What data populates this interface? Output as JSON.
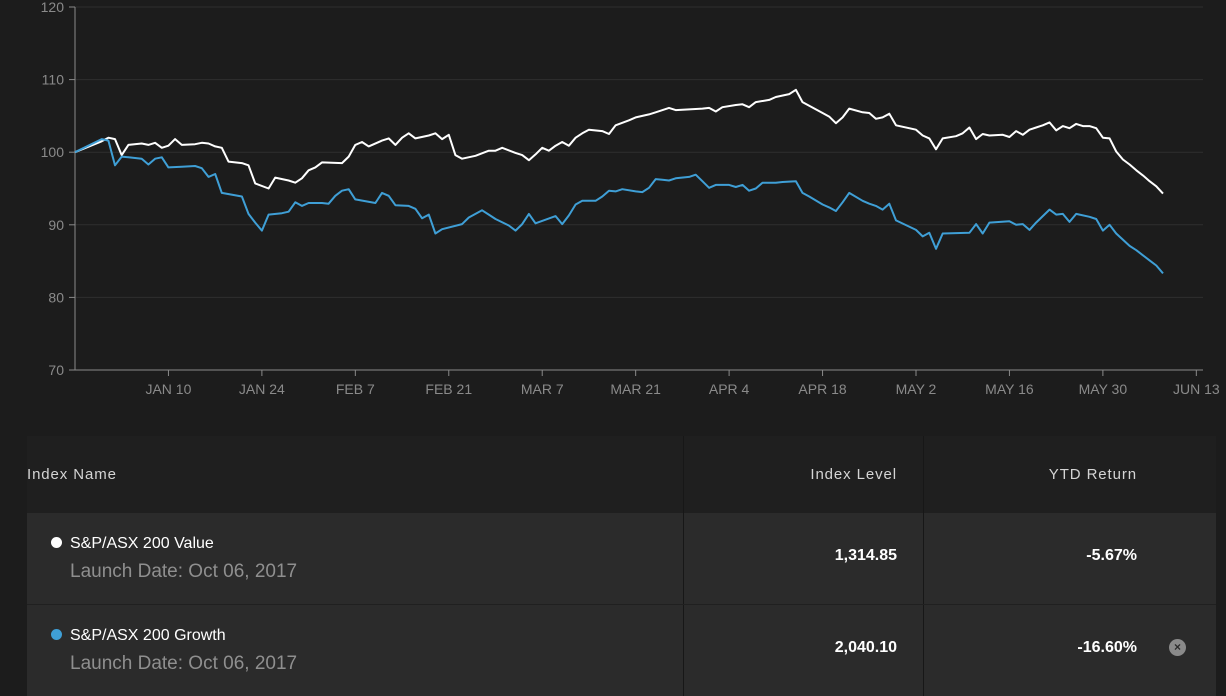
{
  "chart_data": {
    "type": "line",
    "ylim": [
      70,
      120
    ],
    "y_ticks": [
      70,
      80,
      90,
      100,
      110,
      120
    ],
    "x_tick_labels": [
      "JAN 10",
      "JAN 24",
      "FEB 7",
      "FEB 21",
      "MAR 7",
      "MAR 21",
      "APR 4",
      "APR 18",
      "MAY 2",
      "MAY 16",
      "MAY 30",
      "JUN 13"
    ],
    "x_tick_days": [
      9,
      23,
      37,
      51,
      65,
      79,
      93,
      107,
      121,
      135,
      149,
      163
    ],
    "x_range_days": [
      -5,
      164
    ],
    "grid": true,
    "series": [
      {
        "name": "S&P/ASX 200 Value",
        "color": "#ffffff",
        "points": [
          [
            -5,
            100.0
          ],
          [
            -1,
            101.5
          ],
          [
            0,
            102.0
          ],
          [
            1,
            101.8
          ],
          [
            2,
            99.6
          ],
          [
            3,
            101.0
          ],
          [
            5,
            101.2
          ],
          [
            6,
            101.0
          ],
          [
            7,
            101.3
          ],
          [
            8,
            100.6
          ],
          [
            9,
            100.9
          ],
          [
            10,
            101.8
          ],
          [
            11,
            101.0
          ],
          [
            13,
            101.1
          ],
          [
            14,
            101.3
          ],
          [
            15,
            101.2
          ],
          [
            16,
            100.8
          ],
          [
            17,
            100.6
          ],
          [
            18,
            98.7
          ],
          [
            20,
            98.5
          ],
          [
            21,
            98.2
          ],
          [
            22,
            95.7
          ],
          [
            24,
            95.0
          ],
          [
            25,
            96.5
          ],
          [
            27,
            96.1
          ],
          [
            28,
            95.8
          ],
          [
            29,
            96.4
          ],
          [
            30,
            97.5
          ],
          [
            31,
            97.9
          ],
          [
            32,
            98.6
          ],
          [
            35,
            98.5
          ],
          [
            36,
            99.4
          ],
          [
            37,
            101.0
          ],
          [
            38,
            101.4
          ],
          [
            39,
            100.8
          ],
          [
            41,
            101.6
          ],
          [
            42,
            101.9
          ],
          [
            43,
            101.0
          ],
          [
            44,
            102.0
          ],
          [
            45,
            102.6
          ],
          [
            46,
            101.9
          ],
          [
            48,
            102.3
          ],
          [
            49,
            102.6
          ],
          [
            50,
            101.8
          ],
          [
            51,
            102.4
          ],
          [
            52,
            99.6
          ],
          [
            53,
            99.1
          ],
          [
            55,
            99.5
          ],
          [
            57,
            100.2
          ],
          [
            58,
            100.2
          ],
          [
            59,
            100.6
          ],
          [
            61,
            99.9
          ],
          [
            62,
            99.6
          ],
          [
            63,
            98.9
          ],
          [
            64,
            99.7
          ],
          [
            65,
            100.6
          ],
          [
            66,
            100.2
          ],
          [
            67,
            100.9
          ],
          [
            68,
            101.4
          ],
          [
            69,
            100.9
          ],
          [
            70,
            102.0
          ],
          [
            71,
            102.6
          ],
          [
            72,
            103.1
          ],
          [
            74,
            102.9
          ],
          [
            75,
            102.5
          ],
          [
            76,
            103.7
          ],
          [
            78,
            104.4
          ],
          [
            79,
            104.8
          ],
          [
            81,
            105.2
          ],
          [
            82,
            105.5
          ],
          [
            84,
            106.1
          ],
          [
            85,
            105.8
          ],
          [
            87,
            105.9
          ],
          [
            89,
            106.0
          ],
          [
            90,
            106.1
          ],
          [
            91,
            105.6
          ],
          [
            92,
            106.2
          ],
          [
            94,
            106.5
          ],
          [
            95,
            106.6
          ],
          [
            96,
            106.2
          ],
          [
            97,
            106.9
          ],
          [
            99,
            107.2
          ],
          [
            100,
            107.6
          ],
          [
            102,
            108.0
          ],
          [
            103,
            108.6
          ],
          [
            104,
            106.9
          ],
          [
            105,
            106.4
          ],
          [
            107,
            105.4
          ],
          [
            108,
            104.9
          ],
          [
            109,
            104.0
          ],
          [
            110,
            104.8
          ],
          [
            111,
            106.0
          ],
          [
            113,
            105.5
          ],
          [
            114,
            105.4
          ],
          [
            115,
            104.6
          ],
          [
            116,
            104.8
          ],
          [
            117,
            105.3
          ],
          [
            118,
            103.7
          ],
          [
            121,
            103.1
          ],
          [
            122,
            102.3
          ],
          [
            123,
            101.9
          ],
          [
            124,
            100.4
          ],
          [
            125,
            101.9
          ],
          [
            127,
            102.2
          ],
          [
            128,
            102.6
          ],
          [
            129,
            103.4
          ],
          [
            130,
            101.8
          ],
          [
            131,
            102.5
          ],
          [
            132,
            102.3
          ],
          [
            134,
            102.4
          ],
          [
            135,
            102.1
          ],
          [
            136,
            102.9
          ],
          [
            137,
            102.4
          ],
          [
            138,
            103.1
          ],
          [
            139,
            103.4
          ],
          [
            140,
            103.7
          ],
          [
            141,
            104.1
          ],
          [
            142,
            103.0
          ],
          [
            143,
            103.6
          ],
          [
            144,
            103.3
          ],
          [
            145,
            103.9
          ],
          [
            146,
            103.6
          ],
          [
            147,
            103.6
          ],
          [
            148,
            103.3
          ],
          [
            149,
            102.0
          ],
          [
            150,
            101.9
          ],
          [
            151,
            100.1
          ],
          [
            152,
            99.0
          ],
          [
            153,
            98.3
          ],
          [
            154,
            97.5
          ],
          [
            155,
            96.8
          ],
          [
            156,
            96.0
          ],
          [
            157,
            95.3
          ],
          [
            158,
            94.3
          ]
        ]
      },
      {
        "name": "S&P/ASX 200 Growth",
        "color": "#3f9fd6",
        "points": [
          [
            -5,
            100.0
          ],
          [
            -1,
            101.8
          ],
          [
            0,
            101.6
          ],
          [
            1,
            98.2
          ],
          [
            2,
            99.4
          ],
          [
            3,
            99.3
          ],
          [
            5,
            99.1
          ],
          [
            6,
            98.3
          ],
          [
            7,
            99.1
          ],
          [
            8,
            99.3
          ],
          [
            9,
            97.9
          ],
          [
            11,
            98.0
          ],
          [
            13,
            98.1
          ],
          [
            14,
            97.8
          ],
          [
            15,
            96.6
          ],
          [
            16,
            97.0
          ],
          [
            17,
            94.4
          ],
          [
            20,
            93.9
          ],
          [
            21,
            91.5
          ],
          [
            22,
            90.3
          ],
          [
            23,
            89.2
          ],
          [
            24,
            91.4
          ],
          [
            26,
            91.6
          ],
          [
            27,
            91.8
          ],
          [
            28,
            93.1
          ],
          [
            29,
            92.6
          ],
          [
            30,
            93.0
          ],
          [
            32,
            93.0
          ],
          [
            33,
            92.9
          ],
          [
            34,
            94.0
          ],
          [
            35,
            94.7
          ],
          [
            36,
            94.9
          ],
          [
            37,
            93.5
          ],
          [
            40,
            93.0
          ],
          [
            41,
            94.4
          ],
          [
            42,
            94.0
          ],
          [
            43,
            92.7
          ],
          [
            45,
            92.6
          ],
          [
            46,
            92.2
          ],
          [
            47,
            90.9
          ],
          [
            48,
            91.4
          ],
          [
            49,
            88.8
          ],
          [
            50,
            89.4
          ],
          [
            53,
            90.1
          ],
          [
            54,
            91.0
          ],
          [
            56,
            92.0
          ],
          [
            57,
            91.4
          ],
          [
            58,
            90.8
          ],
          [
            60,
            89.9
          ],
          [
            61,
            89.2
          ],
          [
            62,
            90.1
          ],
          [
            63,
            91.5
          ],
          [
            64,
            90.2
          ],
          [
            67,
            91.2
          ],
          [
            68,
            90.1
          ],
          [
            69,
            91.3
          ],
          [
            70,
            92.8
          ],
          [
            71,
            93.3
          ],
          [
            73,
            93.3
          ],
          [
            74,
            93.9
          ],
          [
            75,
            94.7
          ],
          [
            76,
            94.6
          ],
          [
            77,
            94.9
          ],
          [
            79,
            94.6
          ],
          [
            80,
            94.5
          ],
          [
            81,
            95.1
          ],
          [
            82,
            96.3
          ],
          [
            83,
            96.2
          ],
          [
            84,
            96.1
          ],
          [
            85,
            96.4
          ],
          [
            87,
            96.6
          ],
          [
            88,
            96.9
          ],
          [
            89,
            96.0
          ],
          [
            90,
            95.1
          ],
          [
            91,
            95.5
          ],
          [
            93,
            95.5
          ],
          [
            94,
            95.2
          ],
          [
            95,
            95.5
          ],
          [
            96,
            94.7
          ],
          [
            97,
            95.0
          ],
          [
            98,
            95.8
          ],
          [
            100,
            95.8
          ],
          [
            101,
            95.9
          ],
          [
            103,
            96.0
          ],
          [
            104,
            94.4
          ],
          [
            105,
            93.9
          ],
          [
            107,
            92.8
          ],
          [
            108,
            92.4
          ],
          [
            109,
            91.9
          ],
          [
            110,
            93.1
          ],
          [
            111,
            94.4
          ],
          [
            113,
            93.3
          ],
          [
            114,
            92.9
          ],
          [
            115,
            92.6
          ],
          [
            116,
            92.1
          ],
          [
            117,
            92.9
          ],
          [
            118,
            90.6
          ],
          [
            121,
            89.3
          ],
          [
            122,
            88.4
          ],
          [
            123,
            88.9
          ],
          [
            124,
            86.7
          ],
          [
            125,
            88.8
          ],
          [
            129,
            88.9
          ],
          [
            130,
            90.1
          ],
          [
            131,
            88.8
          ],
          [
            132,
            90.3
          ],
          [
            135,
            90.5
          ],
          [
            136,
            90.0
          ],
          [
            137,
            90.1
          ],
          [
            138,
            89.3
          ],
          [
            139,
            90.3
          ],
          [
            140,
            91.2
          ],
          [
            141,
            92.1
          ],
          [
            142,
            91.4
          ],
          [
            143,
            91.5
          ],
          [
            144,
            90.4
          ],
          [
            145,
            91.5
          ],
          [
            147,
            91.1
          ],
          [
            148,
            90.8
          ],
          [
            149,
            89.2
          ],
          [
            150,
            90.0
          ],
          [
            151,
            88.8
          ],
          [
            153,
            87.1
          ],
          [
            154,
            86.5
          ],
          [
            155,
            85.8
          ],
          [
            156,
            85.1
          ],
          [
            157,
            84.4
          ],
          [
            158,
            83.3
          ]
        ]
      }
    ]
  },
  "table": {
    "headers": {
      "name": "Index Name",
      "level": "Index Level",
      "ytd": "YTD Return"
    },
    "rows": [
      {
        "name": "S&P/ASX 200 Value",
        "launch": "Launch Date: Oct 06, 2017",
        "level": "1,314.85",
        "ytd": "-5.67%",
        "dot_color": "#ffffff"
      },
      {
        "name": "S&P/ASX 200 Growth",
        "launch": "Launch Date: Oct 06, 2017",
        "level": "2,040.10",
        "ytd": "-16.60%",
        "dot_color": "#3f9fd6",
        "close_icon": "×"
      }
    ]
  }
}
